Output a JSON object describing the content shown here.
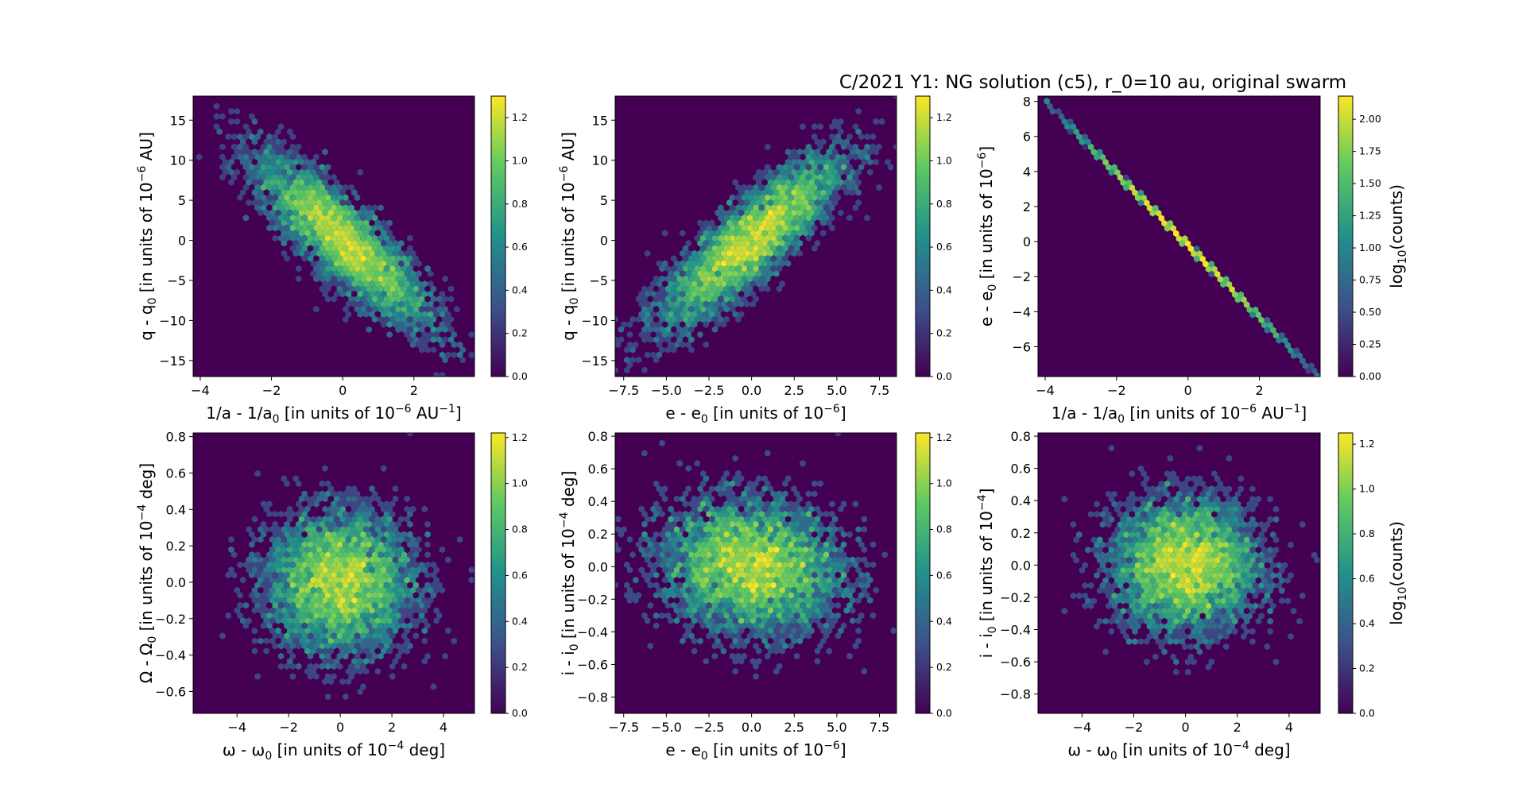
{
  "figure": {
    "title": "C/2021 Y1: NG solution (c5), r_0=10 au, original swarm"
  },
  "colormap": [
    "#440154",
    "#3b528b",
    "#21918c",
    "#5ec962",
    "#fde725"
  ],
  "chart_data": [
    {
      "type": "heatmap",
      "xlabel": "1/a - 1/a0 [in units of 10^-6 AU^-1]",
      "ylabel": "q - q0 [in units of 10^-6 AU]",
      "xlim": [
        -4.2,
        3.7
      ],
      "ylim": [
        -17,
        18
      ],
      "xticks": [
        -4,
        -2,
        0,
        2
      ],
      "yticks": [
        -15,
        -10,
        -5,
        0,
        5,
        10,
        15
      ],
      "correlation": -0.85,
      "sx": 1.2,
      "sy": 5.2,
      "colorbar": {
        "label": "",
        "ticks": [
          0.0,
          0.2,
          0.4,
          0.6,
          0.8,
          1.0,
          1.2
        ],
        "max": 1.3
      },
      "ylabel_parts": {
        "base": "q - q",
        "sub": "0",
        "rest": " [in units of 10",
        "sup": "−6",
        "tail": " AU]"
      },
      "xlabel_parts": {
        "base": "1/a - 1/a",
        "sub": "0",
        "rest": " [in units of 10",
        "sup": "−6",
        "tail": " AU",
        "sup2": "−1",
        "tail2": "]"
      }
    },
    {
      "type": "heatmap",
      "xlabel": "e - e0 [in units of 10^-6]",
      "ylabel": "q - q0 [in units of 10^-6 AU]",
      "xlim": [
        -8.0,
        8.5
      ],
      "ylim": [
        -17,
        18
      ],
      "xticks": [
        -7.5,
        -5.0,
        -2.5,
        0.0,
        2.5,
        5.0,
        7.5
      ],
      "yticks": [
        -15,
        -10,
        -5,
        0,
        5,
        10,
        15
      ],
      "correlation": 0.85,
      "sx": 2.6,
      "sy": 5.2,
      "colorbar": {
        "label": "",
        "ticks": [
          0.0,
          0.2,
          0.4,
          0.6,
          0.8,
          1.0,
          1.2
        ],
        "max": 1.3
      },
      "ylabel_parts": {
        "base": "q - q",
        "sub": "0",
        "rest": " [in units of 10",
        "sup": "−6",
        "tail": " AU]"
      },
      "xlabel_parts": {
        "base": "e - e",
        "sub": "0",
        "rest": " [in units of 10",
        "sup": "−6",
        "tail": "]"
      }
    },
    {
      "type": "heatmap",
      "xlabel": "1/a - 1/a0 [in units of 10^-6 AU^-1]",
      "ylabel": "e - e0 [in units of 10^-6]",
      "xlim": [
        -4.2,
        3.7
      ],
      "ylim": [
        -7.7,
        8.3
      ],
      "xticks": [
        -4,
        -2,
        0,
        2
      ],
      "yticks": [
        -6,
        -4,
        -2,
        0,
        2,
        4,
        6,
        8
      ],
      "line": {
        "from": [
          -4.0,
          8.0
        ],
        "to": [
          3.6,
          -7.6
        ]
      },
      "colorbar": {
        "label": "log10(counts)",
        "ticks": [
          0.0,
          0.25,
          0.5,
          0.75,
          1.0,
          1.25,
          1.5,
          1.75,
          2.0
        ],
        "max": 2.18
      },
      "ylabel_parts": {
        "base": "e - e",
        "sub": "0",
        "rest": " [in units of 10",
        "sup": "−6",
        "tail": "]"
      },
      "xlabel_parts": {
        "base": "1/a - 1/a",
        "sub": "0",
        "rest": " [in units of 10",
        "sup": "−6",
        "tail": " AU",
        "sup2": "−1",
        "tail2": "]"
      }
    },
    {
      "type": "heatmap",
      "xlabel": "ω - ω0 [in units of 10^-4 deg]",
      "ylabel": "Ω - Ω0 [in units of 10^-4 deg]",
      "xlim": [
        -5.7,
        5.2
      ],
      "ylim": [
        -0.72,
        0.82
      ],
      "xticks": [
        -4,
        -2,
        0,
        2,
        4
      ],
      "yticks": [
        -0.6,
        -0.4,
        -0.2,
        0.0,
        0.2,
        0.4,
        0.6,
        0.8
      ],
      "correlation": 0.0,
      "sx": 1.4,
      "sy": 0.19,
      "colorbar": {
        "label": "",
        "ticks": [
          0.0,
          0.2,
          0.4,
          0.6,
          0.8,
          1.0,
          1.2
        ],
        "max": 1.22
      },
      "ylabel_parts": {
        "base": "Ω - Ω",
        "sub": "0",
        "rest": " [in units of 10",
        "sup": "−4",
        "tail": " deg]"
      },
      "xlabel_parts": {
        "base": "ω - ω",
        "sub": "0",
        "rest": " [in units of 10",
        "sup": "−4",
        "tail": " deg]"
      }
    },
    {
      "type": "heatmap",
      "xlabel": "e - e0 [in units of 10^-6]",
      "ylabel": "i - i0 [in units of 10^-4 deg]",
      "xlim": [
        -8.0,
        8.5
      ],
      "ylim": [
        -0.9,
        0.82
      ],
      "xticks": [
        -7.5,
        -5.0,
        -2.5,
        0.0,
        2.5,
        5.0,
        7.5
      ],
      "yticks": [
        -0.8,
        -0.6,
        -0.4,
        -0.2,
        0.0,
        0.2,
        0.4,
        0.6,
        0.8
      ],
      "correlation": -0.1,
      "sx": 2.6,
      "sy": 0.2,
      "colorbar": {
        "label": "",
        "ticks": [
          0.0,
          0.2,
          0.4,
          0.6,
          0.8,
          1.0,
          1.2
        ],
        "max": 1.22
      },
      "ylabel_parts": {
        "base": "i - i",
        "sub": "0",
        "rest": " [in units of 10",
        "sup": "−4",
        "tail": " deg]"
      },
      "xlabel_parts": {
        "base": "e - e",
        "sub": "0",
        "rest": " [in units of 10",
        "sup": "−6",
        "tail": "]"
      }
    },
    {
      "type": "heatmap",
      "xlabel": "ω - ω0 [in units of 10^-4 deg]",
      "ylabel": "i - i0 [in units of 10^-4]",
      "xlim": [
        -5.7,
        5.2
      ],
      "ylim": [
        -0.92,
        0.82
      ],
      "xticks": [
        -4,
        -2,
        0,
        2,
        4
      ],
      "yticks": [
        -0.8,
        -0.6,
        -0.4,
        -0.2,
        0.0,
        0.2,
        0.4,
        0.6,
        0.8
      ],
      "correlation": 0.0,
      "sx": 1.4,
      "sy": 0.2,
      "colorbar": {
        "label": "log10(counts)",
        "ticks": [
          0.0,
          0.2,
          0.4,
          0.6,
          0.8,
          1.0,
          1.2
        ],
        "max": 1.25
      },
      "ylabel_parts": {
        "base": "i - i",
        "sub": "0",
        "rest": " [in units of 10",
        "sup": "−4",
        "tail": "]"
      },
      "xlabel_parts": {
        "base": "ω - ω",
        "sub": "0",
        "rest": " [in units of 10",
        "sup": "−4",
        "tail": " deg]"
      }
    }
  ]
}
